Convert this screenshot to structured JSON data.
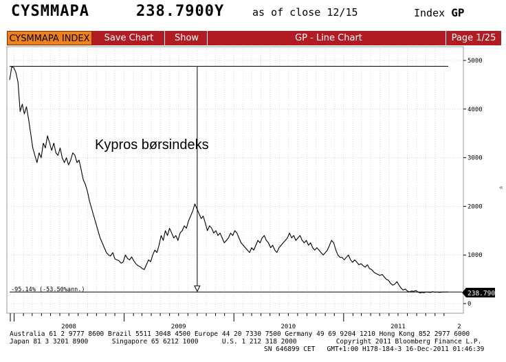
{
  "header": {
    "ticker": "CYSMMAPA",
    "value": "238.7900Y",
    "as_of": "as of close 12/15",
    "index_label": "Index",
    "index_code": "GP"
  },
  "toolbar": {
    "name": "CYSMMAPA INDEX",
    "save": "Save Chart",
    "show": "Show",
    "title": "GP - Line Chart",
    "page": "Page 1/25"
  },
  "colors": {
    "bar": "#b11c22",
    "name_bg": "#f0801a",
    "line": "#000000",
    "grid": "#c8c8c8"
  },
  "chart_data": {
    "type": "line",
    "title": "Kypros børsindeks",
    "xlabel": "",
    "ylabel": "",
    "ylim": [
      -150,
      5000
    ],
    "x_range": [
      "2007-12-17",
      "2011-12-15"
    ],
    "x_ticks": [
      "2008",
      "2009",
      "2010",
      "2011",
      "2"
    ],
    "y_ticks": [
      0,
      1000,
      2000,
      3000,
      4000,
      5000
    ],
    "grid": true,
    "high_value": 4880,
    "marker_date": "2009-09-01",
    "last_value": 238.79,
    "last_value_label": "238.7900",
    "change_note": "-95.14% (-53.50%ann.)",
    "series": [
      {
        "values": [
          [
            "2007-12-17",
            4600
          ],
          [
            "2007-12-24",
            4870
          ],
          [
            "2007-12-31",
            4850
          ],
          [
            "2008-01-07",
            4750
          ],
          [
            "2008-01-14",
            4550
          ],
          [
            "2008-01-21",
            3950
          ],
          [
            "2008-01-28",
            4100
          ],
          [
            "2008-02-04",
            3900
          ],
          [
            "2008-02-11",
            4050
          ],
          [
            "2008-02-18",
            3800
          ],
          [
            "2008-02-25",
            3500
          ],
          [
            "2008-03-03",
            3200
          ],
          [
            "2008-03-10",
            3050
          ],
          [
            "2008-03-17",
            2900
          ],
          [
            "2008-03-24",
            3100
          ],
          [
            "2008-03-31",
            3000
          ],
          [
            "2008-04-07",
            3300
          ],
          [
            "2008-04-14",
            3200
          ],
          [
            "2008-04-21",
            3450
          ],
          [
            "2008-04-28",
            3300
          ],
          [
            "2008-05-05",
            3150
          ],
          [
            "2008-05-12",
            3300
          ],
          [
            "2008-05-19",
            3100
          ],
          [
            "2008-05-26",
            3050
          ],
          [
            "2008-06-02",
            3200
          ],
          [
            "2008-06-09",
            3000
          ],
          [
            "2008-06-16",
            2900
          ],
          [
            "2008-06-23",
            3000
          ],
          [
            "2008-06-30",
            2850
          ],
          [
            "2008-07-07",
            2950
          ],
          [
            "2008-07-14",
            3100
          ],
          [
            "2008-07-21",
            3050
          ],
          [
            "2008-07-28",
            2900
          ],
          [
            "2008-08-04",
            2950
          ],
          [
            "2008-08-11",
            2750
          ],
          [
            "2008-08-18",
            2550
          ],
          [
            "2008-08-25",
            2450
          ],
          [
            "2008-09-01",
            2300
          ],
          [
            "2008-09-08",
            2100
          ],
          [
            "2008-09-15",
            1950
          ],
          [
            "2008-09-22",
            1800
          ],
          [
            "2008-09-29",
            1650
          ],
          [
            "2008-10-06",
            1500
          ],
          [
            "2008-10-13",
            1350
          ],
          [
            "2008-10-20",
            1250
          ],
          [
            "2008-10-27",
            1150
          ],
          [
            "2008-11-03",
            1050
          ],
          [
            "2008-11-10",
            1000
          ],
          [
            "2008-11-17",
            980
          ],
          [
            "2008-11-24",
            1050
          ],
          [
            "2008-12-01",
            920
          ],
          [
            "2008-12-08",
            900
          ],
          [
            "2008-12-15",
            880
          ],
          [
            "2008-12-22",
            830
          ],
          [
            "2008-12-29",
            860
          ],
          [
            "2009-01-05",
            1000
          ],
          [
            "2009-01-12",
            930
          ],
          [
            "2009-01-19",
            900
          ],
          [
            "2009-01-26",
            960
          ],
          [
            "2009-02-02",
            880
          ],
          [
            "2009-02-09",
            820
          ],
          [
            "2009-02-16",
            780
          ],
          [
            "2009-02-23",
            760
          ],
          [
            "2009-03-02",
            720
          ],
          [
            "2009-03-09",
            700
          ],
          [
            "2009-03-16",
            800
          ],
          [
            "2009-03-23",
            900
          ],
          [
            "2009-03-30",
            860
          ],
          [
            "2009-04-06",
            1000
          ],
          [
            "2009-04-13",
            1100
          ],
          [
            "2009-04-20",
            1050
          ],
          [
            "2009-04-27",
            1200
          ],
          [
            "2009-05-04",
            1400
          ],
          [
            "2009-05-11",
            1300
          ],
          [
            "2009-05-18",
            1500
          ],
          [
            "2009-05-25",
            1400
          ],
          [
            "2009-06-01",
            1550
          ],
          [
            "2009-06-08",
            1450
          ],
          [
            "2009-06-15",
            1350
          ],
          [
            "2009-06-22",
            1400
          ],
          [
            "2009-06-29",
            1300
          ],
          [
            "2009-07-06",
            1450
          ],
          [
            "2009-07-13",
            1500
          ],
          [
            "2009-07-20",
            1600
          ],
          [
            "2009-07-27",
            1550
          ],
          [
            "2009-08-03",
            1700
          ],
          [
            "2009-08-10",
            1800
          ],
          [
            "2009-08-17",
            1900
          ],
          [
            "2009-08-24",
            2050
          ],
          [
            "2009-08-31",
            1950
          ],
          [
            "2009-09-07",
            1850
          ],
          [
            "2009-09-14",
            1750
          ],
          [
            "2009-09-21",
            1800
          ],
          [
            "2009-09-28",
            1650
          ],
          [
            "2009-10-05",
            1500
          ],
          [
            "2009-10-12",
            1600
          ],
          [
            "2009-10-19",
            1550
          ],
          [
            "2009-10-26",
            1450
          ],
          [
            "2009-11-02",
            1500
          ],
          [
            "2009-11-09",
            1400
          ],
          [
            "2009-11-16",
            1450
          ],
          [
            "2009-11-23",
            1350
          ],
          [
            "2009-11-30",
            1250
          ],
          [
            "2009-12-07",
            1300
          ],
          [
            "2009-12-14",
            1350
          ],
          [
            "2009-12-21",
            1450
          ],
          [
            "2009-12-28",
            1400
          ],
          [
            "2010-01-04",
            1500
          ],
          [
            "2010-01-11",
            1450
          ],
          [
            "2010-01-18",
            1350
          ],
          [
            "2010-01-25",
            1250
          ],
          [
            "2010-02-01",
            1200
          ],
          [
            "2010-02-08",
            1150
          ],
          [
            "2010-02-15",
            1100
          ],
          [
            "2010-02-22",
            1050
          ],
          [
            "2010-03-01",
            1150
          ],
          [
            "2010-03-08",
            1100
          ],
          [
            "2010-03-15",
            1200
          ],
          [
            "2010-03-22",
            1300
          ],
          [
            "2010-03-29",
            1250
          ],
          [
            "2010-04-05",
            1350
          ],
          [
            "2010-04-12",
            1400
          ],
          [
            "2010-04-19",
            1300
          ],
          [
            "2010-04-26",
            1250
          ],
          [
            "2010-05-03",
            1150
          ],
          [
            "2010-05-10",
            1200
          ],
          [
            "2010-05-17",
            1100
          ],
          [
            "2010-05-24",
            1050
          ],
          [
            "2010-05-31",
            1150
          ],
          [
            "2010-06-07",
            1200
          ],
          [
            "2010-06-14",
            1250
          ],
          [
            "2010-06-21",
            1300
          ],
          [
            "2010-06-28",
            1350
          ],
          [
            "2010-07-05",
            1450
          ],
          [
            "2010-07-12",
            1350
          ],
          [
            "2010-07-19",
            1400
          ],
          [
            "2010-07-26",
            1300
          ],
          [
            "2010-08-02",
            1350
          ],
          [
            "2010-08-09",
            1400
          ],
          [
            "2010-08-16",
            1300
          ],
          [
            "2010-08-23",
            1250
          ],
          [
            "2010-08-30",
            1300
          ],
          [
            "2010-09-06",
            1200
          ],
          [
            "2010-09-13",
            1250
          ],
          [
            "2010-09-20",
            1150
          ],
          [
            "2010-09-27",
            1100
          ],
          [
            "2010-10-04",
            1150
          ],
          [
            "2010-10-11",
            1100
          ],
          [
            "2010-10-18",
            1050
          ],
          [
            "2010-10-25",
            1000
          ],
          [
            "2010-11-01",
            1050
          ],
          [
            "2010-11-08",
            1100
          ],
          [
            "2010-11-15",
            1200
          ],
          [
            "2010-11-22",
            1300
          ],
          [
            "2010-11-29",
            1250
          ],
          [
            "2010-12-06",
            1100
          ],
          [
            "2010-12-13",
            1000
          ],
          [
            "2010-12-20",
            950
          ],
          [
            "2010-12-27",
            950
          ],
          [
            "2011-01-03",
            900
          ],
          [
            "2011-01-10",
            950
          ],
          [
            "2011-01-17",
            1000
          ],
          [
            "2011-01-24",
            900
          ],
          [
            "2011-01-31",
            850
          ],
          [
            "2011-02-07",
            900
          ],
          [
            "2011-02-14",
            850
          ],
          [
            "2011-02-21",
            800
          ],
          [
            "2011-02-28",
            820
          ],
          [
            "2011-03-07",
            780
          ],
          [
            "2011-03-14",
            750
          ],
          [
            "2011-03-21",
            800
          ],
          [
            "2011-03-28",
            720
          ],
          [
            "2011-04-04",
            700
          ],
          [
            "2011-04-11",
            650
          ],
          [
            "2011-04-18",
            620
          ],
          [
            "2011-04-25",
            600
          ],
          [
            "2011-05-02",
            580
          ],
          [
            "2011-05-09",
            600
          ],
          [
            "2011-05-16",
            550
          ],
          [
            "2011-05-23",
            500
          ],
          [
            "2011-05-30",
            480
          ],
          [
            "2011-06-06",
            420
          ],
          [
            "2011-06-13",
            380
          ],
          [
            "2011-06-20",
            400
          ],
          [
            "2011-06-27",
            450
          ],
          [
            "2011-07-04",
            380
          ],
          [
            "2011-07-11",
            320
          ],
          [
            "2011-07-18",
            280
          ],
          [
            "2011-07-25",
            300
          ],
          [
            "2011-08-01",
            260
          ],
          [
            "2011-08-08",
            240
          ],
          [
            "2011-08-15",
            260
          ],
          [
            "2011-08-22",
            250
          ],
          [
            "2011-08-29",
            270
          ],
          [
            "2011-09-05",
            240
          ],
          [
            "2011-09-12",
            220
          ],
          [
            "2011-09-19",
            230
          ],
          [
            "2011-09-26",
            225
          ],
          [
            "2011-10-03",
            240
          ],
          [
            "2011-10-10",
            235
          ],
          [
            "2011-10-17",
            230
          ],
          [
            "2011-10-24",
            245
          ],
          [
            "2011-10-31",
            235
          ],
          [
            "2011-11-07",
            240
          ],
          [
            "2011-11-14",
            230
          ],
          [
            "2011-11-21",
            235
          ],
          [
            "2011-11-28",
            240
          ],
          [
            "2011-12-05",
            238
          ],
          [
            "2011-12-15",
            238.79
          ]
        ]
      }
    ]
  },
  "footer": {
    "line1": "Australia 61 2 9777 8600 Brazil 5511 3048 4500 Europe 44 20 7330 7500 Germany 49 69 9204 1210 Hong Kong 852 2977 6000",
    "line2": "Japan 81 3 3201 8900      Singapore 65 6212 1000      U.S. 1 212 318 2000          Copyright 2011 Bloomberg Finance L.P.",
    "line3": "SN 646899 CET   GMT+1:00 H178-184-3 16-Dec-2011 01:46:39"
  }
}
